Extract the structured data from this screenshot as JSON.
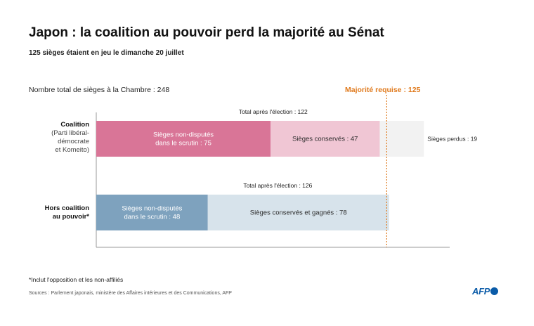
{
  "header": {
    "title": "Japon : la coalition au pouvoir perd la majorité au Sénat",
    "subtitle": "125 sièges étaient en jeu le dimanche 20 juillet"
  },
  "chart_data": {
    "type": "bar",
    "orientation": "horizontal",
    "stacked": true,
    "total_label": "Nombre total de sièges à la Chambre : 248",
    "majority_label": "Majorité requise : 125",
    "majority_value": 125,
    "xlim": [
      0,
      155
    ],
    "colors": {
      "coalition_uncontested": "#d97597",
      "coalition_kept": "#f0c6d4",
      "coalition_lost": "#f2f2f2",
      "opposition_uncontested": "#7ea2be",
      "opposition_kept": "#d7e3eb",
      "majority_line": "#e07b1f"
    },
    "categories": [
      {
        "label_bold": "Coalition",
        "label_lines": [
          "(Parti libéral-",
          "démocrate",
          "et Komeito)"
        ],
        "total_label": "Total après l'élection : 122",
        "segments": [
          {
            "name": "uncontested",
            "value": 75,
            "label_lines": [
              "Sièges non-disputés",
              "dans le scrutin : 75"
            ]
          },
          {
            "name": "kept",
            "value": 47,
            "label_lines": [
              "Sièges conservés : 47"
            ]
          },
          {
            "name": "lost",
            "value": 19,
            "label_lines": [
              "Sièges perdus : 19"
            ]
          }
        ]
      },
      {
        "label_bold_lines": [
          "Hors coalition",
          "au pouvoir*"
        ],
        "total_label": "Total après l'élection : 126",
        "segments": [
          {
            "name": "uncontested",
            "value": 48,
            "label_lines": [
              "Sièges non-disputés",
              "dans le scrutin : 48"
            ]
          },
          {
            "name": "kept_gained",
            "value": 78,
            "label_lines": [
              "Sièges conservés et gagnés : 78"
            ]
          }
        ]
      }
    ]
  },
  "footer": {
    "footnote": "*Inclut l'opposition et les non-affiliés",
    "sources": "Sources : Parlement japonais, ministère des Affaires intérieures et des Communications, AFP",
    "logo_text": "AFP"
  }
}
